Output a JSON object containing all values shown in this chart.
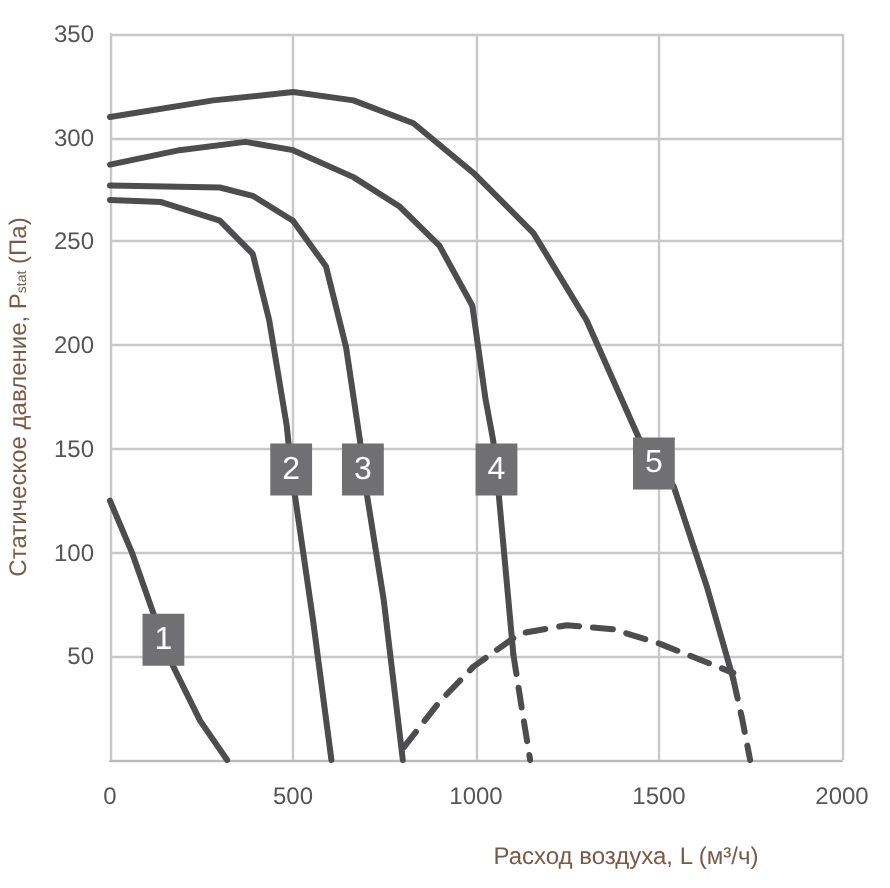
{
  "chart_data": {
    "type": "line",
    "xlabel": "Расход воздуха, L (м³/ч)",
    "ylabel": "Статическое давление, P$_{stat}$ (Па)",
    "xlim": [
      0,
      2000
    ],
    "xticks": [
      0,
      500,
      1000,
      1500,
      2000
    ],
    "ylim": [
      0,
      350
    ],
    "yticks": [
      50,
      100,
      150,
      200,
      250,
      300,
      350
    ],
    "grid": true,
    "line_style": "solid",
    "series": [
      {
        "name": "1",
        "color": "#4d4d4f",
        "x": [
          0,
          60,
          118,
          146,
          173,
          246,
          320
        ],
        "values": [
          125,
          100,
          71,
          58,
          45,
          19,
          0
        ]
      },
      {
        "name": "2",
        "color": "#4d4d4f",
        "x": [
          0,
          140,
          300,
          390,
          435,
          483,
          495,
          555,
          605
        ],
        "values": [
          270,
          269,
          260,
          244,
          212,
          161,
          140,
          67,
          0
        ]
      },
      {
        "name": "3",
        "color": "#4d4d4f",
        "x": [
          0,
          300,
          390,
          500,
          590,
          645,
          683,
          691,
          748,
          800
        ],
        "values": [
          277,
          276,
          272,
          260,
          238,
          199,
          154,
          140,
          77,
          0
        ]
      },
      {
        "name": "4",
        "color": "#4d4d4f",
        "x": [
          0,
          190,
          370,
          500,
          665,
          790,
          900,
          990,
          1026,
          1047,
          1056,
          1102
        ],
        "values": [
          287,
          294,
          298,
          294,
          281,
          267,
          248,
          219,
          174,
          154,
          140,
          51
        ]
      },
      {
        "color": "#4d4d4f",
        "line_style": "dashed",
        "x": [
          1102,
          1125,
          1148
        ],
        "values": [
          51,
          25,
          0
        ]
      },
      {
        "name": "5",
        "color": "#4d4d4f",
        "x": [
          0,
          282,
          501,
          665,
          829,
          993,
          1157,
          1302,
          1448,
          1486,
          1540,
          1630,
          1703
        ],
        "values": [
          310,
          318,
          322,
          318,
          307,
          283,
          254,
          212,
          154,
          143,
          132,
          84,
          39
        ]
      },
      {
        "color": "#4d4d4f",
        "line_style": "dashed",
        "x": [
          1703,
          1727,
          1749
        ],
        "values": [
          39,
          20,
          0
        ]
      },
      {
        "color": "#4d4d4f",
        "line_style": "dashed",
        "x": [
          802,
          900,
          993,
          1120,
          1248,
          1376,
          1503,
          1703
        ],
        "values": [
          6,
          28,
          45,
          61,
          65,
          63,
          56,
          42
        ]
      }
    ]
  }
}
